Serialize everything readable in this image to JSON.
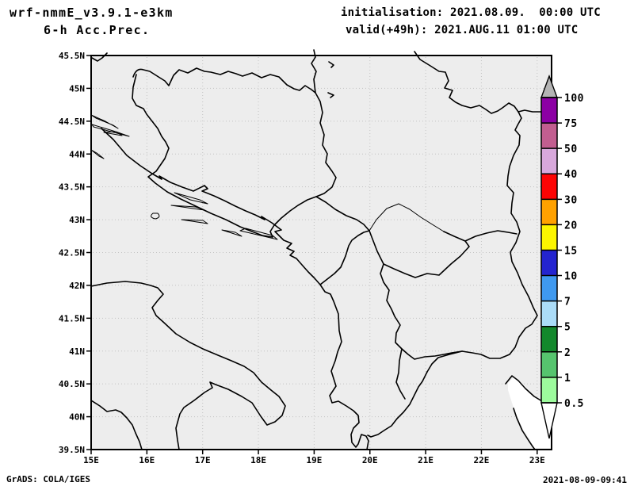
{
  "header": {
    "title_line1": "wrf-nmmE_v3.9.1-e3km",
    "title_line2": "6-h Acc.Prec.",
    "init_label": "initialisation: 2021.08.09.  00:00 UTC",
    "valid_label": "valid(+49h): 2021.AUG.11 01:00 UTC"
  },
  "footer": {
    "credit": "GrADS: COLA/IGES",
    "timestamp": "2021-08-09-09:41"
  },
  "map": {
    "y_axis_labels": [
      "45.5N",
      "45N",
      "44.5N",
      "44N",
      "43.5N",
      "43N",
      "42.5N",
      "42N",
      "41.5N",
      "41N",
      "40.5N",
      "40N",
      "39.5N"
    ],
    "x_axis_labels": [
      "15E",
      "16E",
      "17E",
      "18E",
      "19E",
      "20E",
      "21E",
      "22E",
      "23E"
    ],
    "background_color": "#ededed",
    "outside_domain_color": "#ffffff",
    "gridline_color": "#c3c3c3",
    "line_color": "#000000"
  },
  "colorbar": {
    "labels": [
      "100",
      "75",
      "50",
      "40",
      "30",
      "20",
      "15",
      "10",
      "7",
      "5",
      "2",
      "1",
      "0.5"
    ],
    "segment_colors": [
      "#8c00a4",
      "#c25e90",
      "#d8a8dc",
      "#fc0404",
      "#ffa100",
      "#fcf500",
      "#2424d0",
      "#3f99f0",
      "#abdcf8",
      "#13882c",
      "#56c46e",
      "#9dfb9d"
    ],
    "above_max_color": "#b4b4b4",
    "below_min_color": "#ffffff"
  }
}
